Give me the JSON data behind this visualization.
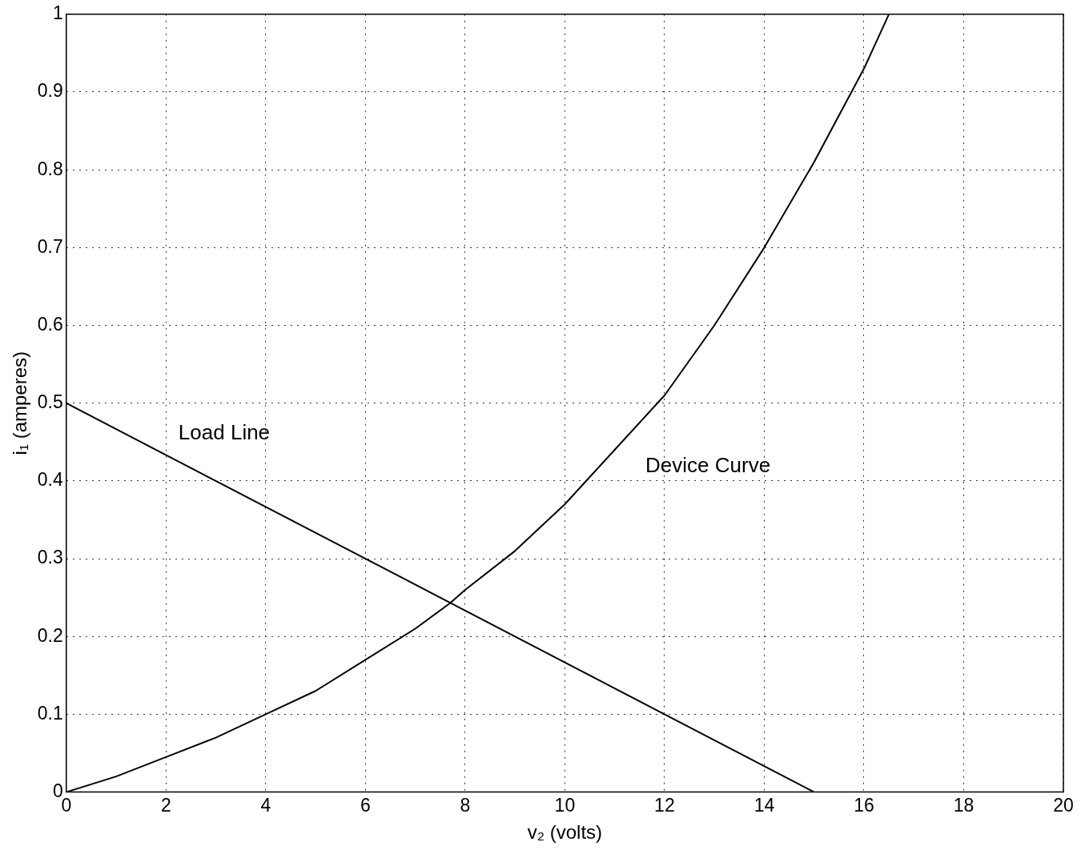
{
  "chart_data": {
    "type": "line",
    "xlabel": "v₂ (volts)",
    "ylabel": "i₁ (amperes)",
    "xlim": [
      0,
      20
    ],
    "xticks": [
      0,
      2,
      4,
      6,
      8,
      10,
      12,
      14,
      16,
      18,
      20
    ],
    "ylim": [
      0,
      1
    ],
    "yticks": [
      0,
      0.1,
      0.2,
      0.3,
      0.4,
      0.5,
      0.6,
      0.7,
      0.8,
      0.9,
      1
    ],
    "series": [
      {
        "name": "Load Line",
        "color": "#000000",
        "x": [
          0,
          15
        ],
        "values": [
          0.5,
          0
        ]
      },
      {
        "name": "Device Curve",
        "color": "#000000",
        "x": [
          0,
          1,
          2,
          3,
          4,
          5,
          6,
          7,
          7.7,
          8,
          9,
          10,
          11,
          12,
          13,
          14,
          15,
          16,
          16.5
        ],
        "values": [
          0,
          0.02,
          0.045,
          0.07,
          0.1,
          0.13,
          0.17,
          0.21,
          0.243,
          0.26,
          0.31,
          0.37,
          0.44,
          0.51,
          0.6,
          0.7,
          0.81,
          0.93,
          1
        ]
      }
    ],
    "grid": true,
    "legend": false,
    "marker": "none",
    "line_style": "solid"
  }
}
